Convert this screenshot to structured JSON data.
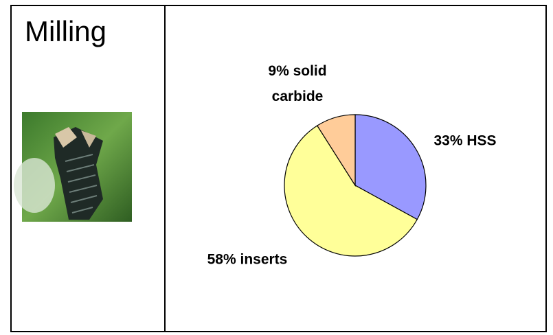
{
  "chart_data": {
    "type": "pie",
    "title": "Milling",
    "categories": [
      "HSS",
      "inserts",
      "solid carbide"
    ],
    "values": [
      33,
      58,
      9
    ],
    "value_labels": [
      "33% HSS",
      "58% inserts",
      "9% solid carbide"
    ],
    "colors": [
      "#9999ff",
      "#ffff99",
      "#ffcc99"
    ]
  }
}
